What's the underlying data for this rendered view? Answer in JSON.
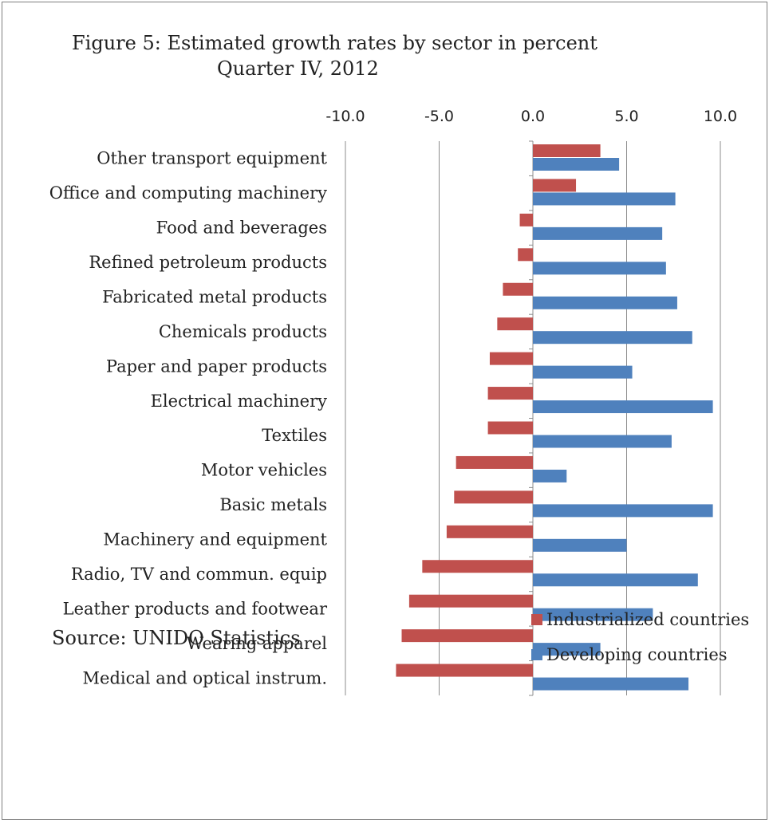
{
  "chart_data": {
    "type": "bar",
    "orientation": "horizontal",
    "title": "Figure 5: Estimated growth rates by sector in percent",
    "subtitle": "Quarter  IV, 2012",
    "source": "Source: UNIDO Statistics",
    "xlim": [
      -10,
      10
    ],
    "xticks": [
      "-10.0",
      "-5.0",
      "0.0",
      "5.0",
      "10.0"
    ],
    "xtick_values": [
      -10,
      -5,
      0,
      5,
      10
    ],
    "grid": "vertical",
    "legend_position": "bottom-right",
    "categories": [
      "Other transport equipment",
      "Office and computing machinery",
      "Food and beverages",
      "Refined petroleum  products",
      "Fabricated metal products",
      "Chemicals products",
      "Paper and paper products",
      "Electrical machinery",
      "Textiles",
      "Motor vehicles",
      "Basic metals",
      "Machinery and equipment",
      "Radio, TV and commun. equip",
      "Leather products and footwear",
      "Wearing apparel",
      "Medical and optical instrum."
    ],
    "series": [
      {
        "name": "Industrialized countries",
        "color": "#c0504d",
        "values": [
          3.6,
          2.3,
          -0.7,
          -0.8,
          -1.6,
          -1.9,
          -2.3,
          -2.4,
          -2.4,
          -4.1,
          -4.2,
          -4.6,
          -5.9,
          -6.6,
          -7.0,
          -7.3
        ]
      },
      {
        "name": "Developing countries",
        "color": "#4f81bd",
        "values": [
          4.6,
          7.6,
          6.9,
          7.1,
          7.7,
          8.5,
          5.3,
          9.6,
          7.4,
          1.8,
          9.6,
          5.0,
          8.8,
          6.4,
          3.6,
          8.3
        ]
      }
    ]
  }
}
